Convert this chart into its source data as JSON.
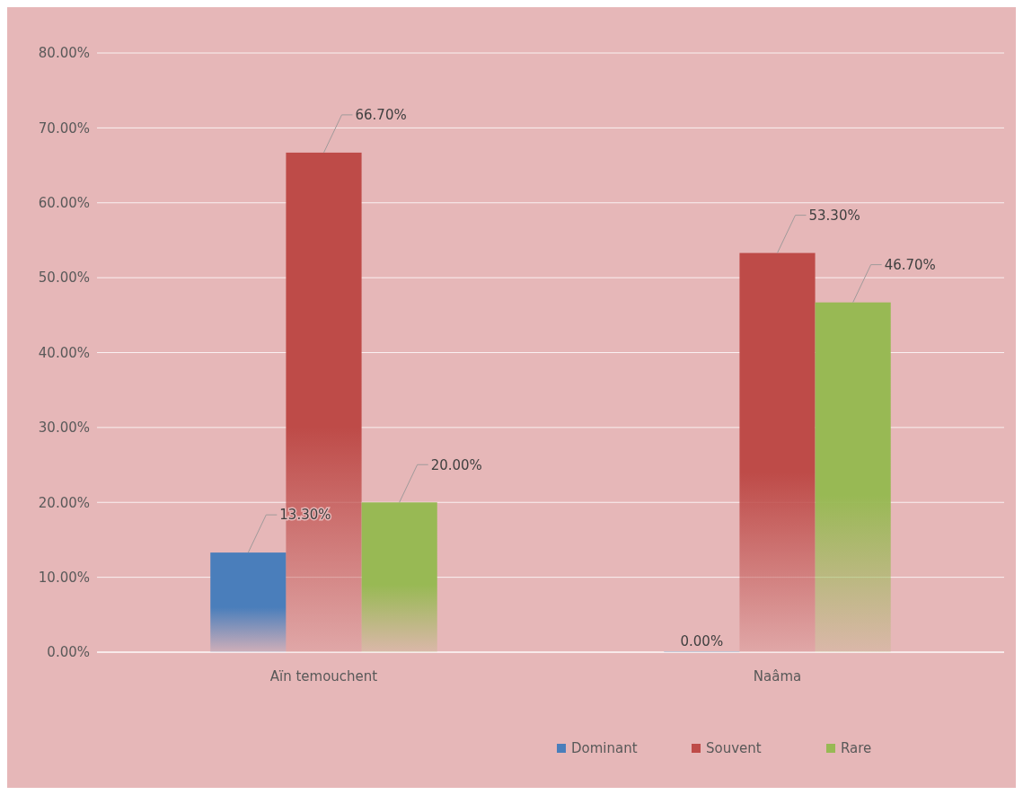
{
  "chart_data": {
    "type": "bar",
    "categories": [
      "Aïn temouchent",
      "Naâma"
    ],
    "series": [
      {
        "name": "Dominant",
        "color": "#4a7ebb",
        "values": [
          13.3,
          0
        ],
        "value_labels": [
          "13.30%",
          "0.00%"
        ]
      },
      {
        "name": "Souvent",
        "color": "#be4b48",
        "values": [
          66.7,
          53.3
        ],
        "value_labels": [
          "66.70%",
          "53.30%"
        ]
      },
      {
        "name": "Rare",
        "color": "#98b954",
        "values": [
          20,
          46.7
        ],
        "value_labels": [
          "20.00%",
          "46.70%"
        ]
      }
    ],
    "ylim": [
      0,
      80
    ],
    "yticks": [
      {
        "value": 0,
        "label": "0.00%"
      },
      {
        "value": 10,
        "label": "10.00%"
      },
      {
        "value": 20,
        "label": "20.00%"
      },
      {
        "value": 30,
        "label": "30.00%"
      },
      {
        "value": 40,
        "label": "40.00%"
      },
      {
        "value": 50,
        "label": "50.00%"
      },
      {
        "value": 60,
        "label": "60.00%"
      },
      {
        "value": 70,
        "label": "70.00%"
      },
      {
        "value": 80,
        "label": "80.00%"
      }
    ],
    "grid": "y",
    "legend": "bottom"
  }
}
